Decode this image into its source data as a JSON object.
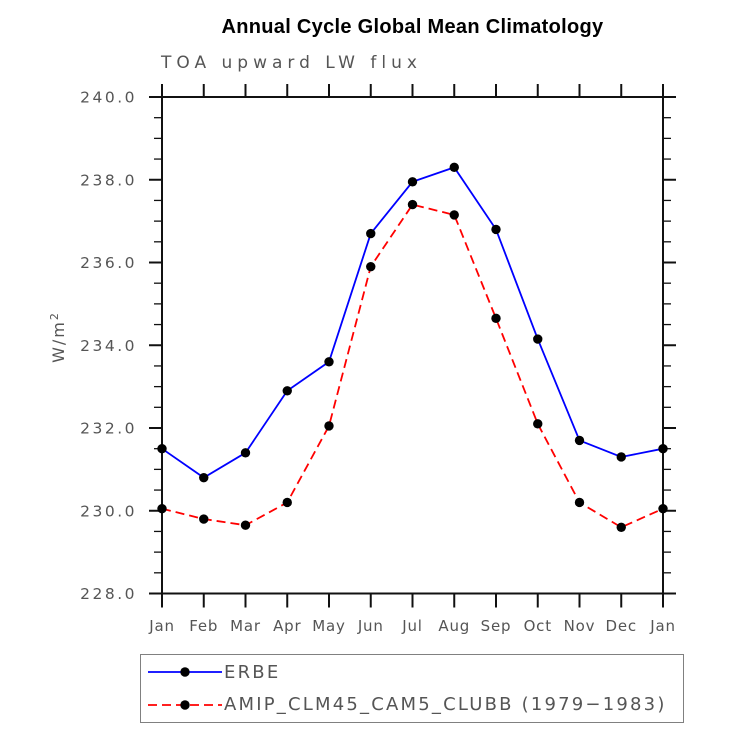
{
  "chart": {
    "title": "Annual Cycle Global Mean Climatology",
    "subtitle": "TOA upward LW flux",
    "ylabel_base": "W/m",
    "ylabel_exp": "2"
  },
  "chart_data": {
    "type": "line",
    "title": "Annual Cycle Global Mean Climatology",
    "subtitle": "TOA upward LW flux",
    "xlabel": "",
    "ylabel": "W/m^2",
    "categories": [
      "Jan",
      "Feb",
      "Mar",
      "Apr",
      "May",
      "Jun",
      "Jul",
      "Aug",
      "Sep",
      "Oct",
      "Nov",
      "Dec",
      "Jan"
    ],
    "series": [
      {
        "name": "ERBE",
        "color": "#0000ff",
        "line_style": "solid",
        "marker": "filled-circle",
        "marker_color": "#000000",
        "values": [
          231.5,
          230.8,
          231.4,
          232.9,
          233.6,
          236.7,
          237.95,
          238.3,
          236.8,
          234.15,
          231.7,
          231.3,
          231.5
        ]
      },
      {
        "name": "AMIP_CLM45_CAM5_CLUBB (1979−1983)",
        "color": "#ff0000",
        "line_style": "dashed",
        "marker": "filled-circle",
        "marker_color": "#000000",
        "values": [
          230.05,
          229.8,
          229.65,
          230.2,
          232.05,
          235.9,
          237.4,
          237.15,
          234.65,
          232.1,
          230.2,
          229.6,
          230.05
        ]
      }
    ],
    "ylim": [
      228.0,
      240.0
    ],
    "y_major_tick_labels": [
      "240.0",
      "238.0",
      "236.0",
      "234.0",
      "232.0",
      "230.0",
      "228.0"
    ],
    "y_major_step": 2.0,
    "y_minor_step": 0.5,
    "grid": false,
    "ticks": "outward-mirrored-all-sides",
    "legend_position": "bottom-left-boxed"
  },
  "legend": {
    "items": [
      {
        "label": "ERBE"
      },
      {
        "label": "AMIP_CLM45_CAM5_CLUBB (1979−1983)"
      }
    ]
  },
  "colors": {
    "series_erbe": "#0000ff",
    "series_amip": "#ff0000",
    "marker": "#000000",
    "frame": "#111111",
    "tick_text": "#555555",
    "legend_border": "#808080",
    "background": "#ffffff"
  }
}
